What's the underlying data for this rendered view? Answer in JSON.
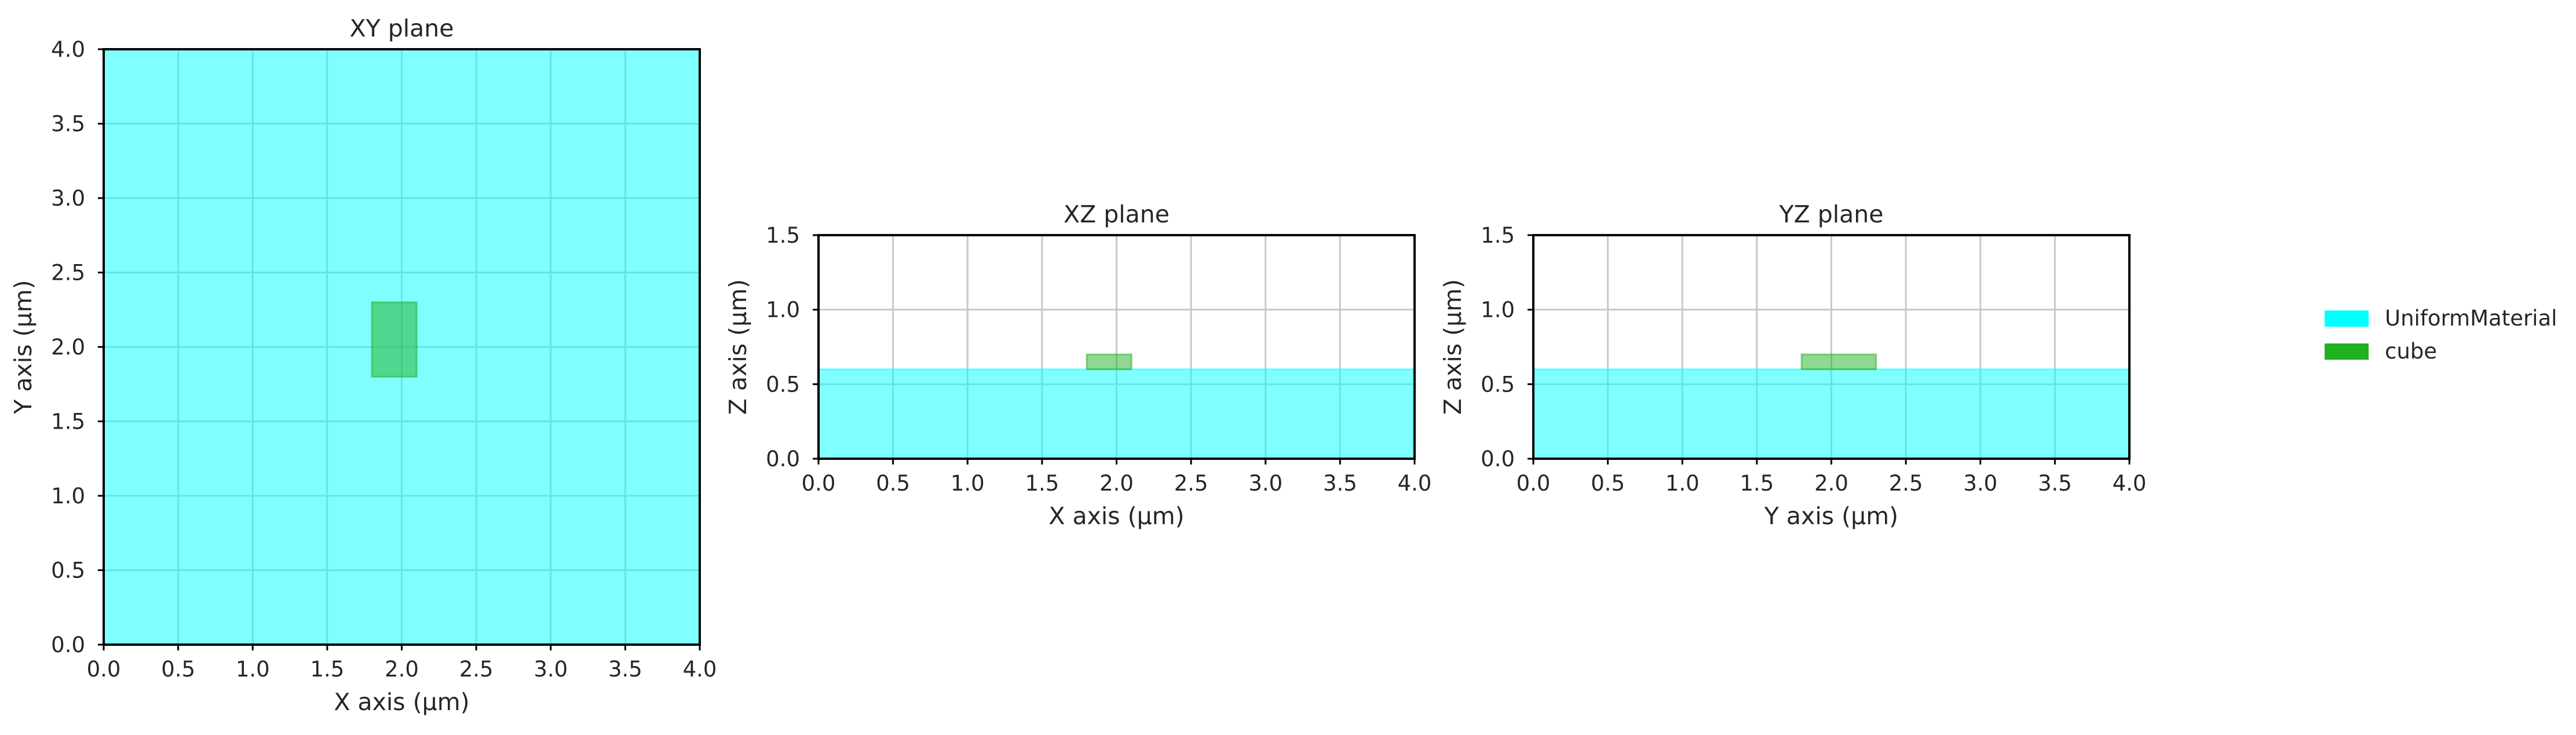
{
  "colors": {
    "uniform_material": "#00ffff",
    "cube": "#21b021",
    "grid": "#c8c8c8",
    "axis": "#000000"
  },
  "legend": {
    "placement": "right",
    "items": [
      {
        "label": "UniformMaterial",
        "color": "#00ffff"
      },
      {
        "label": "cube",
        "color": "#21b021"
      }
    ]
  },
  "chart_data": [
    {
      "type": "area",
      "title": "XY plane",
      "xlabel": "X axis (µm)",
      "ylabel": "Y axis (µm)",
      "xlim": [
        0,
        4
      ],
      "ylim": [
        0,
        4
      ],
      "xticks": [
        "0.0",
        "0.5",
        "1.0",
        "1.5",
        "2.0",
        "2.5",
        "3.0",
        "3.5",
        "4.0"
      ],
      "yticks": [
        "0.0",
        "0.5",
        "1.0",
        "1.5",
        "2.0",
        "2.5",
        "3.0",
        "3.5",
        "4.0"
      ],
      "grid": true,
      "regions": [
        {
          "name": "UniformMaterial",
          "x": [
            0,
            4
          ],
          "y": [
            0,
            4
          ],
          "color": "#00ffff",
          "opacity": 0.5
        },
        {
          "name": "cube",
          "x": [
            1.8,
            2.1
          ],
          "y": [
            1.8,
            2.3
          ],
          "color": "#21b021",
          "opacity": 0.5
        }
      ]
    },
    {
      "type": "area",
      "title": "XZ plane",
      "xlabel": "X axis (µm)",
      "ylabel": "Z axis (µm)",
      "xlim": [
        0,
        4
      ],
      "ylim": [
        0,
        1.5
      ],
      "xticks": [
        "0.0",
        "0.5",
        "1.0",
        "1.5",
        "2.0",
        "2.5",
        "3.0",
        "3.5",
        "4.0"
      ],
      "yticks": [
        "0.0",
        "0.5",
        "1.0",
        "1.5"
      ],
      "grid": true,
      "regions": [
        {
          "name": "UniformMaterial",
          "x": [
            0,
            4
          ],
          "y": [
            0,
            0.6
          ],
          "color": "#00ffff",
          "opacity": 0.5
        },
        {
          "name": "cube",
          "x": [
            1.8,
            2.1
          ],
          "y": [
            0.6,
            0.7
          ],
          "color": "#21b021",
          "opacity": 0.5
        }
      ]
    },
    {
      "type": "area",
      "title": "YZ plane",
      "xlabel": "Y axis (µm)",
      "ylabel": "Z axis (µm)",
      "xlim": [
        0,
        4
      ],
      "ylim": [
        0,
        1.5
      ],
      "xticks": [
        "0.0",
        "0.5",
        "1.0",
        "1.5",
        "2.0",
        "2.5",
        "3.0",
        "3.5",
        "4.0"
      ],
      "yticks": [
        "0.0",
        "0.5",
        "1.0",
        "1.5"
      ],
      "grid": true,
      "regions": [
        {
          "name": "UniformMaterial",
          "x": [
            0,
            4
          ],
          "y": [
            0,
            0.6
          ],
          "color": "#00ffff",
          "opacity": 0.5
        },
        {
          "name": "cube",
          "x": [
            1.8,
            2.3
          ],
          "y": [
            0.6,
            0.7
          ],
          "color": "#21b021",
          "opacity": 0.5
        }
      ]
    }
  ]
}
